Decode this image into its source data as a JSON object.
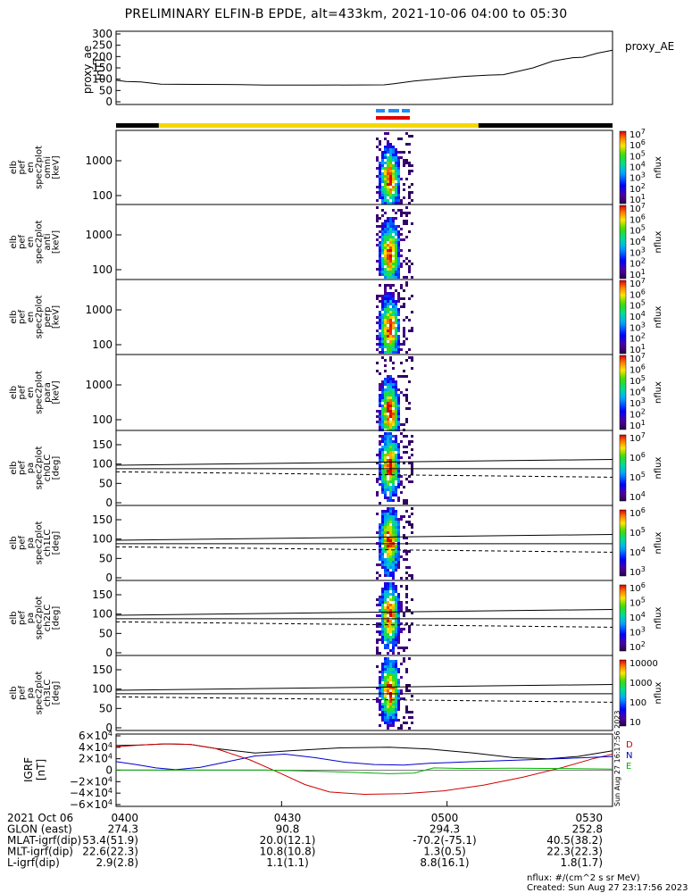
{
  "title": "PRELIMINARY ELFIN-B EPDE, alt=433km, 2021-10-06 04:00 to 05:30",
  "colors": {
    "yellow_bar": "#f5d800",
    "black_bar": "#000000",
    "blue_dash": "#1a8cff",
    "red_bar": "#e00000",
    "series_red": "#d00000",
    "series_blue": "#0000cc",
    "series_green": "#00b000",
    "series_black": "#000000"
  },
  "proxy_ae": {
    "right_label": "proxy_AE",
    "ylabel_line1": "proxy_ae",
    "ylabel_line2": "[nT]",
    "ticks": [
      "300",
      "250",
      "200",
      "150",
      "100",
      "50",
      "0"
    ]
  },
  "energy_panels": [
    {
      "ylabel": [
        "elb",
        "pef",
        "en",
        "spec2plot",
        "omni",
        "[keV]"
      ],
      "yticks": [
        "1000",
        "100"
      ],
      "cbar_ticks": [
        "10^7",
        "10^6",
        "10^5",
        "10^4",
        "10^3",
        "10^2",
        "10^1"
      ],
      "cbar_label": "nflux"
    },
    {
      "ylabel": [
        "elb",
        "pef",
        "en",
        "spec2plot",
        "anti",
        "[keV]"
      ],
      "yticks": [
        "1000",
        "100"
      ],
      "cbar_ticks": [
        "10^7",
        "10^6",
        "10^5",
        "10^4",
        "10^3",
        "10^2",
        "10^1"
      ],
      "cbar_label": "nflux"
    },
    {
      "ylabel": [
        "elb",
        "pef",
        "en",
        "spec2plot",
        "perp",
        "[keV]"
      ],
      "yticks": [
        "1000",
        "100"
      ],
      "cbar_ticks": [
        "10^7",
        "10^6",
        "10^5",
        "10^4",
        "10^3",
        "10^2",
        "10^1"
      ],
      "cbar_label": "nflux"
    },
    {
      "ylabel": [
        "elb",
        "pef",
        "en",
        "spec2plot",
        "para",
        "[keV]"
      ],
      "yticks": [
        "1000",
        "100"
      ],
      "cbar_ticks": [
        "10^7",
        "10^6",
        "10^5",
        "10^4",
        "10^3",
        "10^2",
        "10^1"
      ],
      "cbar_label": "nflux"
    }
  ],
  "pitch_panels": [
    {
      "ylabel": [
        "elb",
        "pef",
        "pa",
        "spec2plot",
        "ch0LC",
        "[deg]"
      ],
      "yticks": [
        "150",
        "100",
        "50",
        "0"
      ],
      "cbar_ticks": [
        "10^7",
        "10^6",
        "10^5",
        "10^4"
      ],
      "cbar_label": "nflux"
    },
    {
      "ylabel": [
        "elb",
        "pef",
        "pa",
        "spec2plot",
        "ch1LC",
        "[deg]"
      ],
      "yticks": [
        "150",
        "100",
        "50",
        "0"
      ],
      "cbar_ticks": [
        "10^6",
        "10^5",
        "10^4",
        "10^3"
      ],
      "cbar_label": "nflux"
    },
    {
      "ylabel": [
        "elb",
        "pef",
        "pa",
        "spec2plot",
        "ch2LC",
        "[deg]"
      ],
      "yticks": [
        "150",
        "100",
        "50",
        "0"
      ],
      "cbar_ticks": [
        "10^6",
        "10^5",
        "10^4",
        "10^3",
        "10^2"
      ],
      "cbar_label": "nflux"
    },
    {
      "ylabel": [
        "elb",
        "pef",
        "pa",
        "spec2plot",
        "ch3LC",
        "[deg]"
      ],
      "yticks": [
        "150",
        "100",
        "50",
        "0"
      ],
      "cbar_ticks": [
        "10000",
        "1000",
        "100",
        "10"
      ],
      "cbar_label": "nflux"
    }
  ],
  "igrf": {
    "ylabel_line1": "IGRF",
    "ylabel_line2": "[nT]",
    "yticks": [
      "6×10^4",
      "4×10^4",
      "2×10^4",
      "0",
      "−2×10^4",
      "−4×10^4",
      "−6×10^4"
    ],
    "legend": [
      "D",
      "N",
      "E"
    ],
    "side_text": "Sun Aug 27 16:17:56 2023"
  },
  "chart_data": {
    "type": "line",
    "x": [
      "0400",
      "0430",
      "0500",
      "0530"
    ],
    "series": [
      {
        "name": "proxy_AE",
        "values": [
          100,
          75,
          120,
          230
        ]
      }
    ]
  },
  "footer": {
    "rows": [
      {
        "label": "2021 Oct 06",
        "values": [
          "0400",
          "0430",
          "0500",
          "0530"
        ]
      },
      {
        "label": "GLON (east)",
        "values": [
          "274.3",
          "90.8",
          "294.3",
          "252.8"
        ]
      },
      {
        "label": "MLAT-igrf(dip)",
        "values": [
          "53.4(51.9)",
          "20.0(12.1)",
          "-70.2(-75.1)",
          "40.5(38.2)"
        ]
      },
      {
        "label": "MLT-igrf(dip)",
        "values": [
          "22.6(22.3)",
          "10.8(10.8)",
          "1.3(0.5)",
          "22.3(22.3)"
        ]
      },
      {
        "label": "L-igrf(dip)",
        "values": [
          "2.9(2.8)",
          "1.1(1.1)",
          "8.8(16.1)",
          "1.8(1.7)"
        ]
      }
    ],
    "units": "nflux: #/(cm^2 s sr MeV)",
    "created": "Created: Sun Aug 27 23:17:56 2023"
  }
}
